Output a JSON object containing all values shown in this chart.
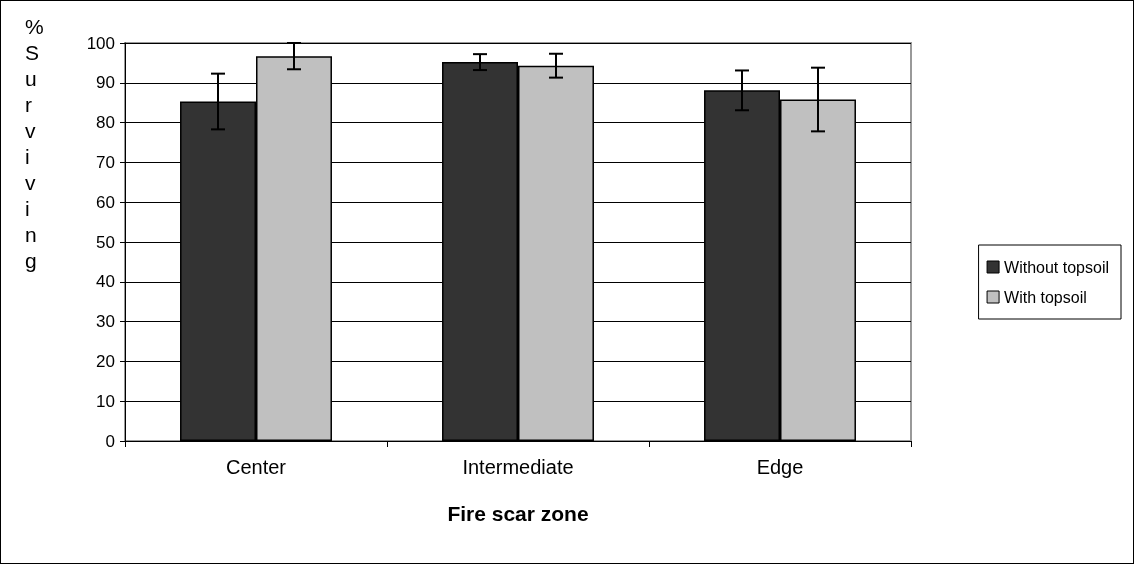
{
  "chart_data": {
    "type": "bar",
    "xlabel": "Fire scar zone",
    "ylabel": "% Surviving",
    "categories": [
      "Center",
      "Intermediate",
      "Edge"
    ],
    "series": [
      {
        "name": "Without topsoil",
        "color": "#333333",
        "values": [
          85.3,
          95.2,
          88.1
        ],
        "errors": [
          7,
          2,
          5
        ]
      },
      {
        "name": "With topsoil",
        "color": "#c0c0c0",
        "values": [
          96.7,
          94.3,
          85.8
        ],
        "errors": [
          3.3,
          3,
          8
        ]
      }
    ],
    "ylim": [
      0,
      100
    ],
    "yticks": [
      0,
      10,
      20,
      30,
      40,
      50,
      60,
      70,
      80,
      90,
      100
    ],
    "grid": "y",
    "legend": "right"
  }
}
